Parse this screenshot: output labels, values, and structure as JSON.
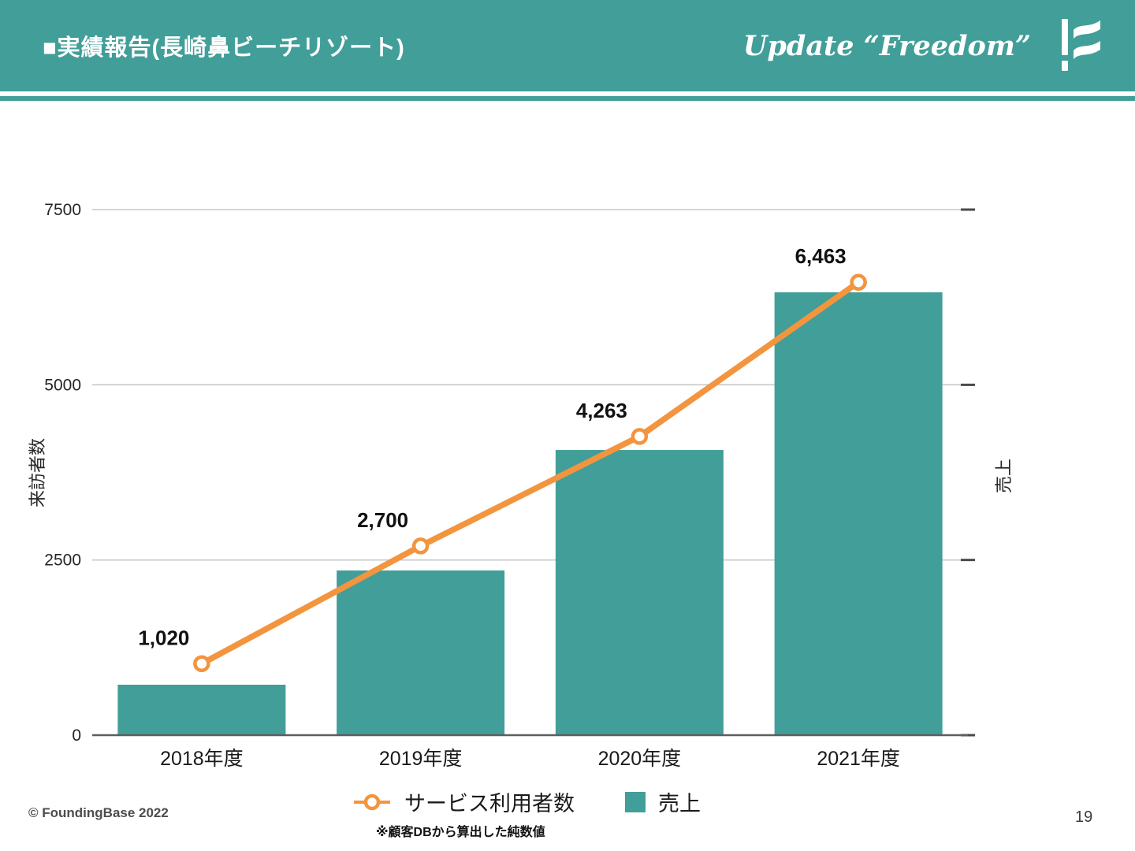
{
  "header": {
    "title": "■実績報告(長崎鼻ビーチリゾート)",
    "slogan": "Update “Freedom”",
    "logo_icon": "foundingbase-flag-icon"
  },
  "chart_data": {
    "type": "combo (bar + line)",
    "categories": [
      "2018年度",
      "2019年度",
      "2020年度",
      "2021年度"
    ],
    "series": [
      {
        "name": "サービス利用者数",
        "type": "line",
        "axis": "left",
        "values": [
          1020,
          2700,
          4263,
          6463
        ],
        "data_labels": [
          "1,020",
          "2,700",
          "4,263",
          "6,463"
        ],
        "color": "#F2953E",
        "marker": "open-circle"
      },
      {
        "name": "売上",
        "type": "bar",
        "axis": "right (unlabeled)",
        "values_estimated_on_left_scale": [
          720,
          2350,
          4070,
          6320
        ],
        "color": "#429E98"
      }
    ],
    "left_axis": {
      "label": "来訪者数",
      "ticks": [
        0,
        2500,
        5000,
        7500
      ],
      "min": 0,
      "max": 7500
    },
    "right_axis": {
      "label": "売上",
      "tick_labels_shown": false
    },
    "grid": "horizontal gridlines at 2500/5000/7500, right-end tick dashes",
    "legend_position": "bottom-center",
    "legend_note": "※顧客DBから算出した純数値"
  },
  "legend": {
    "line_label": "サービス利用者数",
    "bar_label": "売上",
    "note": "※顧客DBから算出した純数値"
  },
  "footer": {
    "copyright": "© FoundingBase 2022",
    "page_number": "19"
  },
  "colors": {
    "teal": "#429E98",
    "orange": "#F2953E",
    "grid": "#C9C9C9",
    "axis": "#5E5E5E",
    "text": "#1F1F1F"
  }
}
